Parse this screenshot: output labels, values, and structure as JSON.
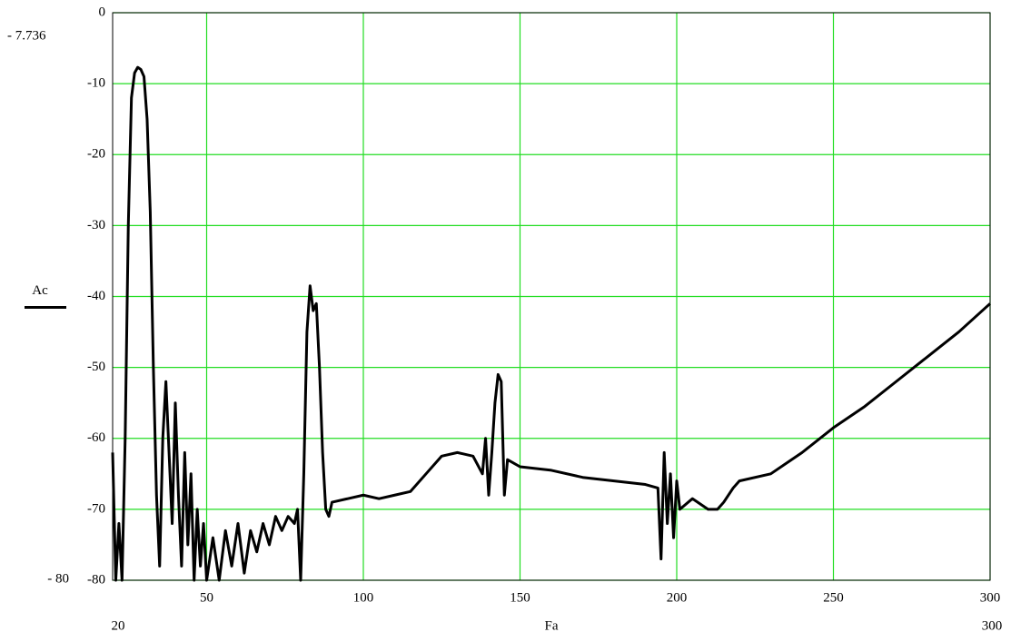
{
  "chart_data": {
    "type": "line",
    "x_label": "Fa",
    "limit_labels": {
      "y_top": "- 7.736",
      "y_bottom": "- 80",
      "x_left": "20",
      "x_right": "300"
    },
    "xlim": [
      20,
      300
    ],
    "ylim": [
      -80,
      0
    ],
    "xticks": [
      50,
      100,
      150,
      200,
      250,
      300
    ],
    "yticks": [
      0,
      -10,
      -20,
      -30,
      -40,
      -50,
      -60,
      -70,
      -80
    ],
    "grid": true,
    "grid_color": "#22dd22",
    "legend": "left",
    "series": [
      {
        "name": "Ac",
        "color": "#000000",
        "x": [
          20,
          21,
          22,
          23,
          24,
          25,
          26,
          27,
          28,
          29,
          30,
          31,
          32,
          33,
          34,
          35,
          36,
          37,
          38,
          39,
          40,
          41,
          42,
          43,
          44,
          45,
          46,
          47,
          48,
          49,
          50,
          52,
          54,
          56,
          58,
          60,
          62,
          64,
          66,
          68,
          70,
          72,
          74,
          76,
          78,
          79,
          80,
          81,
          82,
          83,
          84,
          85,
          86,
          87,
          88,
          89,
          90,
          95,
          100,
          105,
          110,
          115,
          120,
          125,
          130,
          135,
          138,
          139,
          140,
          141,
          142,
          143,
          144,
          145,
          146,
          150,
          160,
          170,
          180,
          190,
          194,
          195,
          196,
          197,
          198,
          199,
          200,
          201,
          205,
          210,
          213,
          215,
          218,
          220,
          230,
          240,
          250,
          260,
          270,
          280,
          290,
          300
        ],
        "values": [
          -62,
          -80,
          -72,
          -80,
          -60,
          -30,
          -12,
          -8.5,
          -7.7,
          -8,
          -9,
          -15,
          -28,
          -50,
          -68,
          -78,
          -60,
          -52,
          -62,
          -72,
          -55,
          -68,
          -78,
          -62,
          -75,
          -65,
          -80,
          -70,
          -78,
          -72,
          -80,
          -74,
          -80,
          -73,
          -78,
          -72,
          -79,
          -73,
          -76,
          -72,
          -75,
          -71,
          -73,
          -71,
          -72,
          -70,
          -80,
          -65,
          -45,
          -38.5,
          -42,
          -41,
          -50,
          -62,
          -70,
          -71,
          -69,
          -68.5,
          -68,
          -68.5,
          -68,
          -67.5,
          -65,
          -62.5,
          -62,
          -62.5,
          -65,
          -60,
          -68,
          -62,
          -55,
          -51,
          -52,
          -68,
          -63,
          -64,
          -64.5,
          -65.5,
          -66,
          -66.5,
          -67,
          -77,
          -62,
          -72,
          -65,
          -74,
          -66,
          -70,
          -68.5,
          -70,
          -70,
          -69,
          -67,
          -66,
          -65,
          -62,
          -58.5,
          -55.5,
          -52,
          -48.5,
          -45,
          -41
        ]
      }
    ]
  }
}
